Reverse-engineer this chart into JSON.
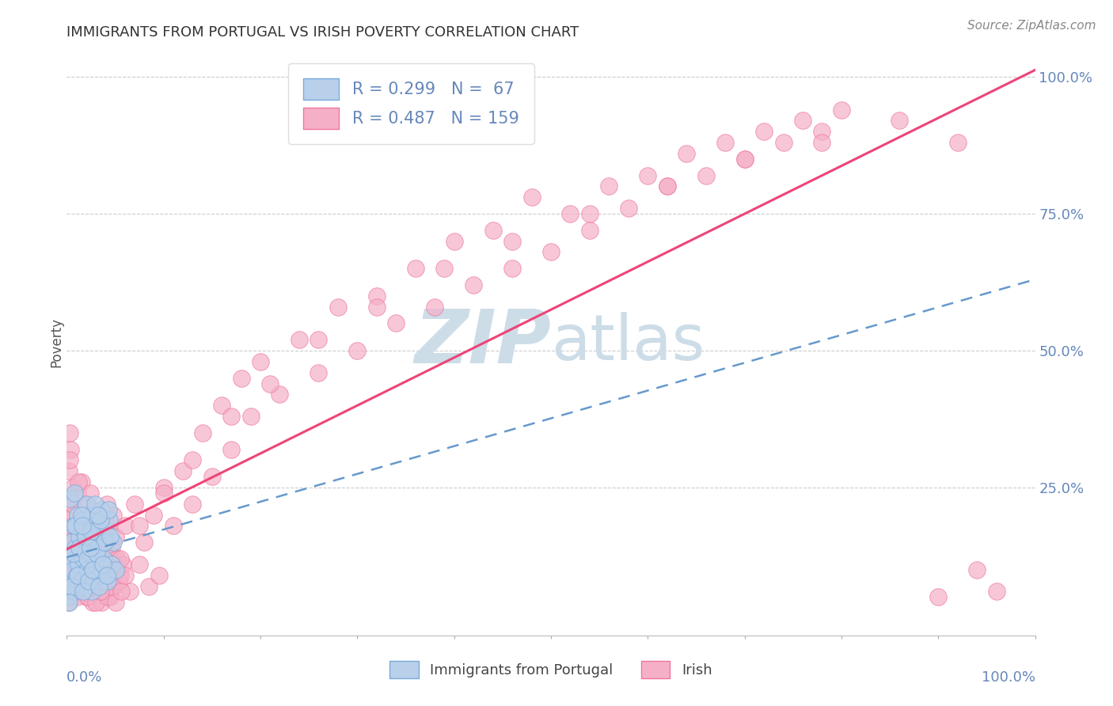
{
  "title": "IMMIGRANTS FROM PORTUGAL VS IRISH POVERTY CORRELATION CHART",
  "source_text": "Source: ZipAtlas.com",
  "ylabel": "Poverty",
  "xlim": [
    0.0,
    1.0
  ],
  "ylim": [
    -0.02,
    1.05
  ],
  "blue_R": 0.299,
  "blue_N": 67,
  "pink_R": 0.487,
  "pink_N": 159,
  "legend_label_blue": "Immigrants from Portugal",
  "legend_label_pink": "Irish",
  "blue_color": "#b8d0ea",
  "pink_color": "#f5b0c8",
  "blue_edge": "#7aaadd",
  "pink_edge": "#ee7799",
  "trend_blue_color": "#6699cc",
  "trend_pink_color": "#ee4477",
  "watermark_zip": "ZIP",
  "watermark_atlas": "atlas",
  "watermark_color_zip": "#c5d8ee",
  "watermark_color_atlas": "#c5d8ee",
  "background_color": "#ffffff",
  "grid_color": "#cccccc",
  "title_color": "#333333",
  "axis_label_color": "#6688bb",
  "blue_scatter_x": [
    0.001,
    0.002,
    0.003,
    0.004,
    0.005,
    0.006,
    0.007,
    0.008,
    0.009,
    0.01,
    0.011,
    0.012,
    0.013,
    0.014,
    0.015,
    0.016,
    0.017,
    0.018,
    0.019,
    0.02,
    0.021,
    0.022,
    0.023,
    0.024,
    0.025,
    0.026,
    0.027,
    0.028,
    0.029,
    0.03,
    0.032,
    0.034,
    0.036,
    0.038,
    0.04,
    0.042,
    0.044,
    0.046,
    0.048,
    0.05,
    0.003,
    0.005,
    0.007,
    0.009,
    0.011,
    0.013,
    0.015,
    0.017,
    0.019,
    0.021,
    0.023,
    0.025,
    0.027,
    0.029,
    0.031,
    0.033,
    0.035,
    0.037,
    0.039,
    0.041,
    0.043,
    0.002,
    0.008,
    0.016,
    0.024,
    0.032,
    0.045
  ],
  "blue_scatter_y": [
    0.05,
    0.08,
    0.12,
    0.07,
    0.15,
    0.1,
    0.18,
    0.06,
    0.14,
    0.09,
    0.2,
    0.11,
    0.16,
    0.13,
    0.08,
    0.19,
    0.12,
    0.17,
    0.07,
    0.22,
    0.1,
    0.15,
    0.09,
    0.18,
    0.13,
    0.06,
    0.2,
    0.08,
    0.16,
    0.11,
    0.14,
    0.09,
    0.21,
    0.12,
    0.17,
    0.08,
    0.19,
    0.11,
    0.15,
    0.1,
    0.23,
    0.07,
    0.13,
    0.18,
    0.09,
    0.14,
    0.2,
    0.06,
    0.16,
    0.12,
    0.08,
    0.17,
    0.1,
    0.22,
    0.13,
    0.07,
    0.19,
    0.11,
    0.15,
    0.09,
    0.21,
    0.04,
    0.24,
    0.18,
    0.14,
    0.2,
    0.16
  ],
  "pink_scatter_x": [
    0.001,
    0.002,
    0.003,
    0.004,
    0.005,
    0.006,
    0.007,
    0.008,
    0.009,
    0.01,
    0.011,
    0.012,
    0.013,
    0.014,
    0.015,
    0.016,
    0.017,
    0.018,
    0.019,
    0.02,
    0.021,
    0.022,
    0.023,
    0.024,
    0.025,
    0.026,
    0.027,
    0.028,
    0.029,
    0.03,
    0.031,
    0.032,
    0.033,
    0.034,
    0.035,
    0.036,
    0.037,
    0.038,
    0.039,
    0.04,
    0.041,
    0.042,
    0.043,
    0.044,
    0.045,
    0.046,
    0.047,
    0.048,
    0.049,
    0.05,
    0.055,
    0.06,
    0.065,
    0.07,
    0.075,
    0.08,
    0.085,
    0.09,
    0.095,
    0.1,
    0.11,
    0.12,
    0.13,
    0.14,
    0.15,
    0.16,
    0.17,
    0.18,
    0.19,
    0.2,
    0.22,
    0.24,
    0.26,
    0.28,
    0.3,
    0.32,
    0.34,
    0.36,
    0.38,
    0.4,
    0.42,
    0.44,
    0.46,
    0.48,
    0.5,
    0.52,
    0.54,
    0.56,
    0.58,
    0.6,
    0.62,
    0.64,
    0.66,
    0.68,
    0.7,
    0.72,
    0.74,
    0.76,
    0.78,
    0.8,
    0.002,
    0.004,
    0.006,
    0.008,
    0.01,
    0.012,
    0.014,
    0.016,
    0.018,
    0.02,
    0.022,
    0.024,
    0.026,
    0.028,
    0.03,
    0.032,
    0.034,
    0.036,
    0.038,
    0.04,
    0.042,
    0.044,
    0.046,
    0.048,
    0.05,
    0.052,
    0.054,
    0.056,
    0.058,
    0.06,
    0.003,
    0.007,
    0.015,
    0.025,
    0.035,
    0.055,
    0.075,
    0.1,
    0.13,
    0.17,
    0.21,
    0.26,
    0.32,
    0.39,
    0.46,
    0.54,
    0.62,
    0.7,
    0.78,
    0.86,
    0.9,
    0.92,
    0.94,
    0.96,
    0.003,
    0.006,
    0.009,
    0.012,
    0.018
  ],
  "pink_scatter_y": [
    0.22,
    0.28,
    0.18,
    0.32,
    0.15,
    0.25,
    0.1,
    0.2,
    0.08,
    0.14,
    0.24,
    0.06,
    0.18,
    0.12,
    0.26,
    0.08,
    0.16,
    0.1,
    0.22,
    0.05,
    0.14,
    0.19,
    0.07,
    0.24,
    0.11,
    0.17,
    0.04,
    0.21,
    0.09,
    0.15,
    0.06,
    0.2,
    0.12,
    0.08,
    0.18,
    0.04,
    0.14,
    0.1,
    0.16,
    0.06,
    0.22,
    0.08,
    0.12,
    0.18,
    0.05,
    0.14,
    0.1,
    0.2,
    0.07,
    0.16,
    0.09,
    0.18,
    0.06,
    0.22,
    0.11,
    0.15,
    0.07,
    0.2,
    0.09,
    0.25,
    0.18,
    0.28,
    0.22,
    0.35,
    0.27,
    0.4,
    0.32,
    0.45,
    0.38,
    0.48,
    0.42,
    0.52,
    0.46,
    0.58,
    0.5,
    0.6,
    0.55,
    0.65,
    0.58,
    0.7,
    0.62,
    0.72,
    0.65,
    0.78,
    0.68,
    0.75,
    0.72,
    0.8,
    0.76,
    0.82,
    0.8,
    0.86,
    0.82,
    0.88,
    0.85,
    0.9,
    0.88,
    0.92,
    0.9,
    0.94,
    0.04,
    0.09,
    0.06,
    0.12,
    0.05,
    0.1,
    0.07,
    0.14,
    0.08,
    0.11,
    0.05,
    0.13,
    0.07,
    0.1,
    0.04,
    0.12,
    0.08,
    0.06,
    0.11,
    0.09,
    0.05,
    0.13,
    0.07,
    0.1,
    0.04,
    0.12,
    0.08,
    0.06,
    0.11,
    0.09,
    0.3,
    0.2,
    0.12,
    0.08,
    0.06,
    0.12,
    0.18,
    0.24,
    0.3,
    0.38,
    0.44,
    0.52,
    0.58,
    0.65,
    0.7,
    0.75,
    0.8,
    0.85,
    0.88,
    0.92,
    0.05,
    0.88,
    0.1,
    0.06,
    0.35,
    0.22,
    0.16,
    0.26,
    0.18
  ]
}
